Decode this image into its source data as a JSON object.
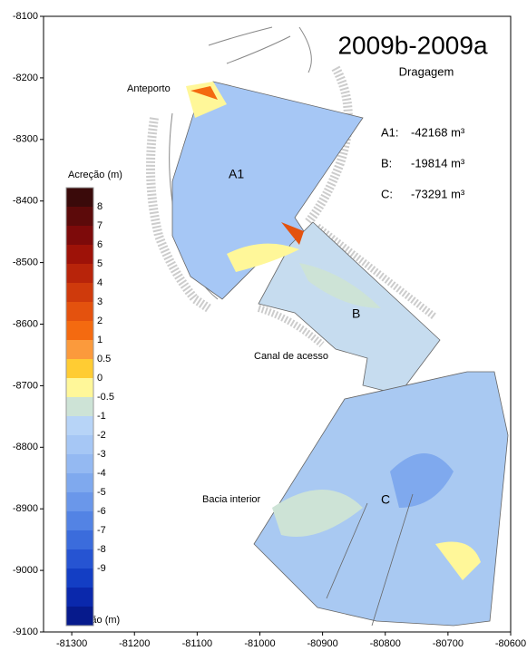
{
  "chart_data": {
    "type": "contour-map",
    "title": "2009b-2009a",
    "subtitle": "Dragagem",
    "volumes": [
      {
        "label": "A1:",
        "value": "-42168 m³"
      },
      {
        "label": "B:",
        "value": "-19814 m³"
      },
      {
        "label": "C:",
        "value": "-73291 m³"
      }
    ],
    "places": [
      "Anteporto",
      "Canal de acesso",
      "Bacia interior"
    ],
    "zones": [
      "A1",
      "B",
      "C"
    ],
    "legend": {
      "top_label": "Acreção (m)",
      "bottom_label": "Erosão (m)",
      "levels": [
        8,
        7,
        6,
        5,
        4,
        3,
        2,
        1,
        0.5,
        0,
        -0.5,
        -1,
        -2,
        -3,
        -4,
        -5,
        -6,
        -7,
        -8,
        -9
      ],
      "colors": [
        "#3a0a0a",
        "#5c0a0a",
        "#7d0a0a",
        "#9e1208",
        "#b8240a",
        "#cf3a0c",
        "#e4520e",
        "#f46a10",
        "#fb9a3c",
        "#ffcc33",
        "#fff799",
        "#cde3d6",
        "#b7d4f7",
        "#a6c7f5",
        "#94b9f2",
        "#7fa9ee",
        "#6a97ea",
        "#5383e4",
        "#3b6cdc",
        "#2654d2",
        "#133ec4",
        "#0a28ac",
        "#061a8c"
      ]
    },
    "xlim": [
      -81345,
      -80600
    ],
    "ylim": [
      -9100,
      -8100
    ],
    "xticks": [
      -81300,
      -81200,
      -81100,
      -81000,
      -80900,
      -80800,
      -80700,
      -80600
    ],
    "yticks": [
      -8100,
      -8200,
      -8300,
      -8400,
      -8500,
      -8600,
      -8700,
      -8800,
      -8900,
      -9000,
      -9100
    ]
  }
}
